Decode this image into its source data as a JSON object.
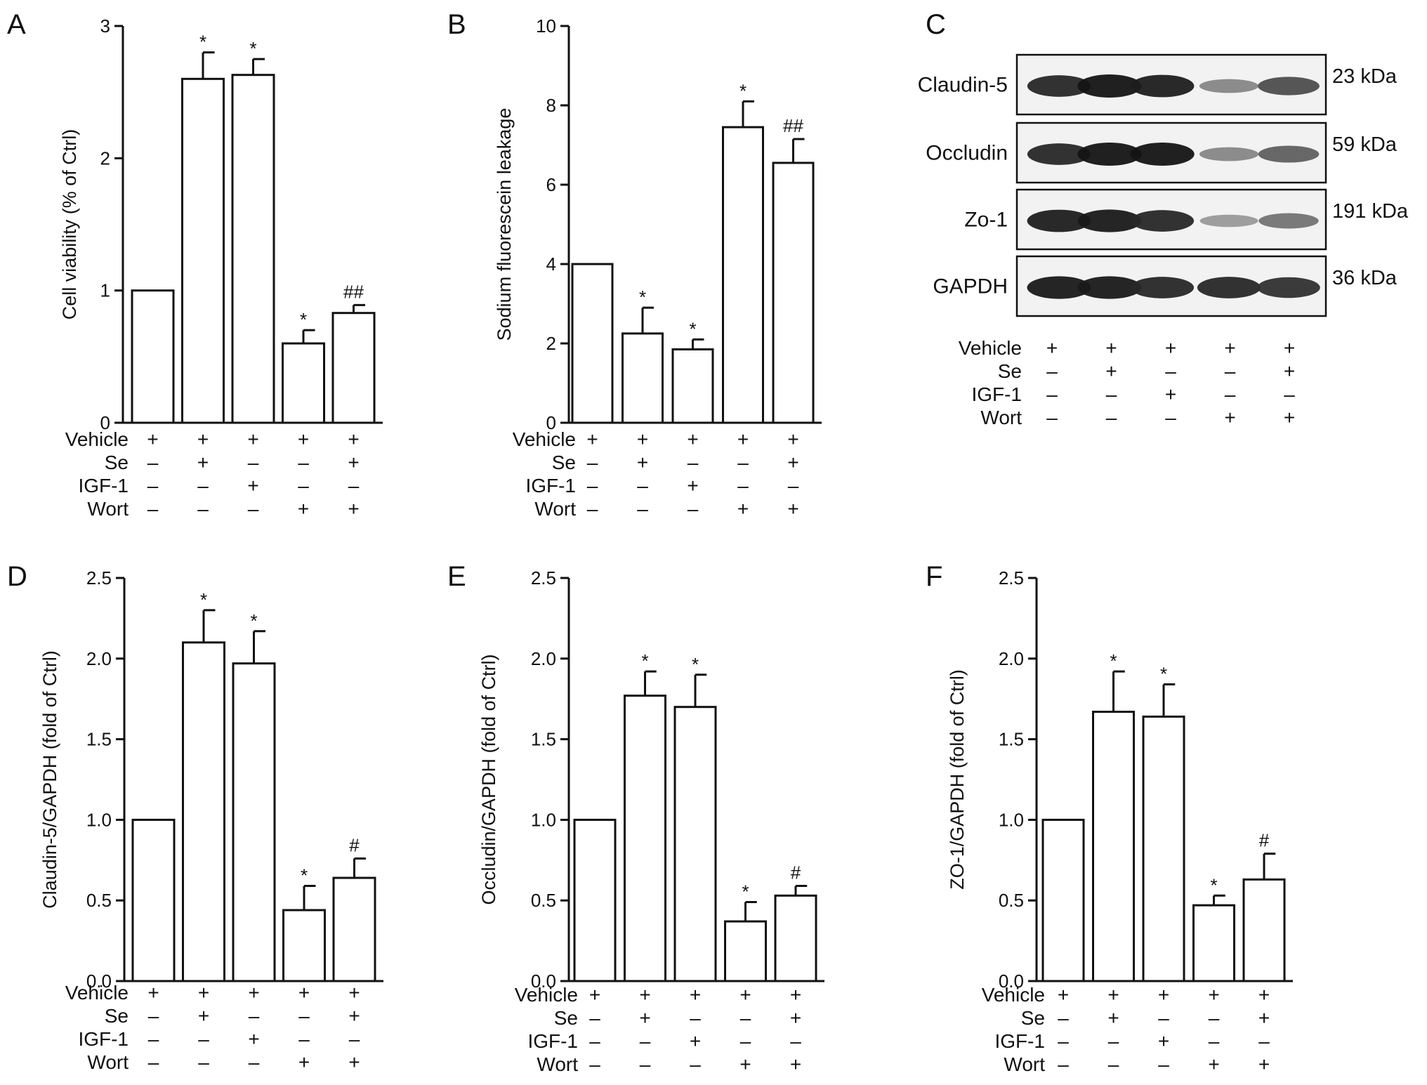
{
  "colors": {
    "axis": "#111111",
    "bar_fill": "#ffffff",
    "blot_bg": "#f2f2f2"
  },
  "conditions": [
    "Vehicle",
    "Se",
    "IGF-1",
    "Wort"
  ],
  "condition_matrix": [
    [
      "+",
      "+",
      "+",
      "+",
      "+"
    ],
    [
      "–",
      "+",
      "–",
      "–",
      "+"
    ],
    [
      "–",
      "–",
      "+",
      "–",
      "–"
    ],
    [
      "–",
      "–",
      "–",
      "+",
      "+"
    ]
  ],
  "chart_data": [
    {
      "panel": "A",
      "type": "bar",
      "ylabel": "Cell viability (% of Ctrl)",
      "ylim": [
        0,
        3
      ],
      "yticks": [
        "0",
        "1",
        "2",
        "3"
      ],
      "values": [
        1.0,
        2.6,
        2.63,
        0.6,
        0.83
      ],
      "errors": [
        0,
        0.2,
        0.12,
        0.1,
        0.06
      ],
      "annotations": [
        "",
        "*",
        "*",
        "*",
        "##"
      ],
      "grid": false
    },
    {
      "panel": "B",
      "type": "bar",
      "ylabel": "Sodium fluorescein leakage",
      "ylim": [
        0,
        10
      ],
      "yticks": [
        "0",
        "2",
        "4",
        "6",
        "8",
        "10"
      ],
      "values": [
        4.0,
        2.25,
        1.85,
        7.45,
        6.55
      ],
      "errors": [
        0,
        0.65,
        0.25,
        0.65,
        0.6
      ],
      "annotations": [
        "",
        "*",
        "*",
        "*",
        "##"
      ],
      "grid": false
    },
    {
      "panel": "D",
      "type": "bar",
      "ylabel": "Claudin-5/GAPDH (fold of Ctrl)",
      "ylim": [
        0,
        2.5
      ],
      "yticks": [
        "0.0",
        "0.5",
        "1.0",
        "1.5",
        "2.0",
        "2.5"
      ],
      "values": [
        1.0,
        2.1,
        1.97,
        0.44,
        0.64
      ],
      "errors": [
        0,
        0.2,
        0.2,
        0.15,
        0.12
      ],
      "annotations": [
        "",
        "*",
        "*",
        "*",
        "#"
      ],
      "grid": false
    },
    {
      "panel": "E",
      "type": "bar",
      "ylabel": "Occludin/GAPDH (fold of Ctrl)",
      "ylim": [
        0,
        2.5
      ],
      "yticks": [
        "0.0",
        "0.5",
        "1.0",
        "1.5",
        "2.0",
        "2.5"
      ],
      "values": [
        1.0,
        1.77,
        1.7,
        0.37,
        0.53
      ],
      "errors": [
        0,
        0.15,
        0.2,
        0.12,
        0.06
      ],
      "annotations": [
        "",
        "*",
        "*",
        "*",
        "#"
      ],
      "grid": false
    },
    {
      "panel": "F",
      "type": "bar",
      "ylabel": "ZO-1/GAPDH (fold of Ctrl)",
      "ylim": [
        0,
        2.5
      ],
      "yticks": [
        "0.0",
        "0.5",
        "1.0",
        "1.5",
        "2.0",
        "2.5"
      ],
      "values": [
        1.0,
        1.67,
        1.64,
        0.47,
        0.63
      ],
      "errors": [
        0,
        0.25,
        0.2,
        0.06,
        0.16
      ],
      "annotations": [
        "",
        "*",
        "*",
        "*",
        "#"
      ],
      "grid": false
    }
  ],
  "western_blot": {
    "panel": "C",
    "rows": [
      {
        "protein": "Claudin-5",
        "kda": "23 kDa",
        "intensities": [
          0.85,
          0.95,
          0.9,
          0.35,
          0.65
        ]
      },
      {
        "protein": "Occludin",
        "kda": "59 kDa",
        "intensities": [
          0.85,
          0.95,
          0.95,
          0.35,
          0.55
        ]
      },
      {
        "protein": "Zo-1",
        "kda": "191 kDa",
        "intensities": [
          0.9,
          0.92,
          0.85,
          0.25,
          0.45
        ]
      },
      {
        "protein": "GAPDH",
        "kda": "36 kDa",
        "intensities": [
          0.92,
          0.92,
          0.85,
          0.85,
          0.8
        ]
      }
    ]
  }
}
